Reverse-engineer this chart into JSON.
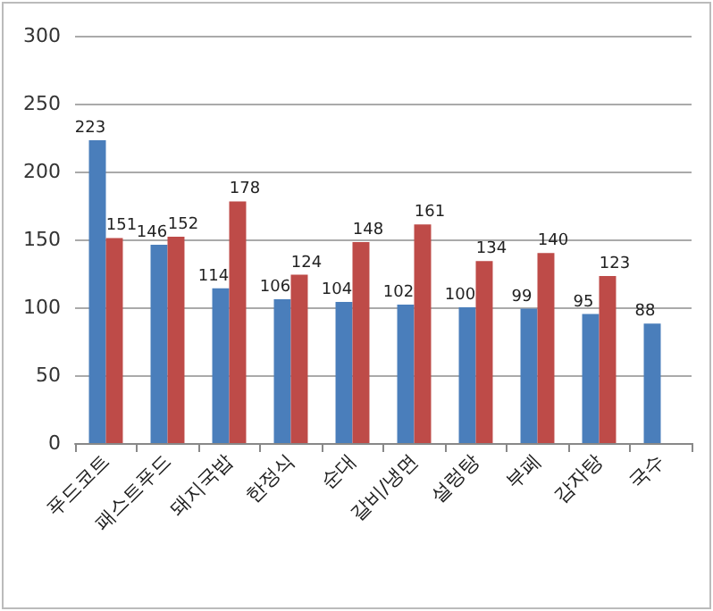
{
  "chart_data": {
    "type": "bar",
    "categories": [
      "푸드코트",
      "패스트푸드",
      "돼지국밥",
      "한정식",
      "순대",
      "갈비/냉면",
      "설렁탕",
      "부페",
      "감자탕",
      "국수"
    ],
    "series": [
      {
        "color": "#4a7ebb",
        "values": [
          223,
          146,
          114,
          106,
          104,
          102,
          100,
          99,
          95,
          88
        ]
      },
      {
        "color": "#be4b48",
        "values": [
          151,
          152,
          178,
          124,
          148,
          161,
          134,
          140,
          123,
          null
        ]
      }
    ],
    "ylim": [
      0,
      300
    ],
    "yticks": [
      0,
      50,
      100,
      150,
      200,
      250,
      300
    ],
    "grid": "y",
    "data_labels": true
  }
}
